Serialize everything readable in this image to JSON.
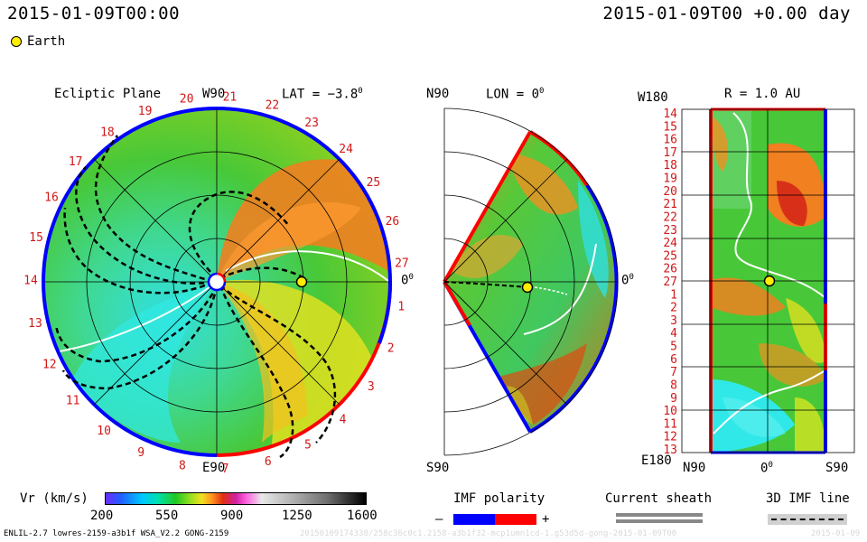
{
  "header": {
    "date_left": "2015-01-09T00:00",
    "date_right": "2015-01-09T00 +0.00 day",
    "legend_earth": "Earth"
  },
  "ecliptic": {
    "title": "Ecliptic Plane",
    "top_label": "W90",
    "bottom_label": "E90",
    "right_label": "0",
    "right_label_sup": "0",
    "lat_label": "LAT = −3.8",
    "lat_sup": "0",
    "rotation_labels": [
      "1",
      "2",
      "3",
      "4",
      "5",
      "6",
      "7",
      "8",
      "9",
      "10",
      "11",
      "12",
      "13",
      "14",
      "15",
      "16",
      "17",
      "18",
      "19",
      "20",
      "21",
      "22",
      "23",
      "24",
      "25",
      "26",
      "27"
    ]
  },
  "meridional": {
    "top_label": "N90",
    "bottom_label": "S90",
    "lon_label": "LON = 0",
    "lon_sup": "0",
    "right_label": "0",
    "right_label_sup": "0"
  },
  "radial": {
    "title": "R = 1.0 AU",
    "top_left": "W180",
    "bottom_left": "E180",
    "bottom_n": "N90",
    "bottom_mid": "0",
    "bottom_mid_sup": "0",
    "bottom_s": "S90",
    "rotation_labels": [
      "14",
      "15",
      "16",
      "17",
      "18",
      "19",
      "20",
      "21",
      "22",
      "23",
      "24",
      "25",
      "26",
      "27",
      "1",
      "2",
      "3",
      "4",
      "5",
      "6",
      "7",
      "8",
      "9",
      "10",
      "11",
      "12",
      "13"
    ]
  },
  "colorbar": {
    "label": "Vr (km/s)",
    "ticks": [
      "200",
      "550",
      "900",
      "1250",
      "1600"
    ],
    "range": [
      200,
      1600
    ]
  },
  "legend": {
    "imf_title": "IMF polarity",
    "imf_minus": "–",
    "imf_plus": "+",
    "sheath_title": "Current sheath",
    "line_title": "3D IMF line",
    "colors": {
      "negative": "#0000ff",
      "positive": "#ff0000",
      "sheath": "#888888"
    }
  },
  "footer": {
    "model": "ENLIL-2.7 lowres-2159-a3b1f WSA_V2.2 GONG-2159",
    "run_id": "20150109174338/258c36c0c1.2158-a3b1f32-mcp1umn1cd-1.g53d5d-gong-2015-01-09T00",
    "stamp": "2015-01-09"
  }
}
